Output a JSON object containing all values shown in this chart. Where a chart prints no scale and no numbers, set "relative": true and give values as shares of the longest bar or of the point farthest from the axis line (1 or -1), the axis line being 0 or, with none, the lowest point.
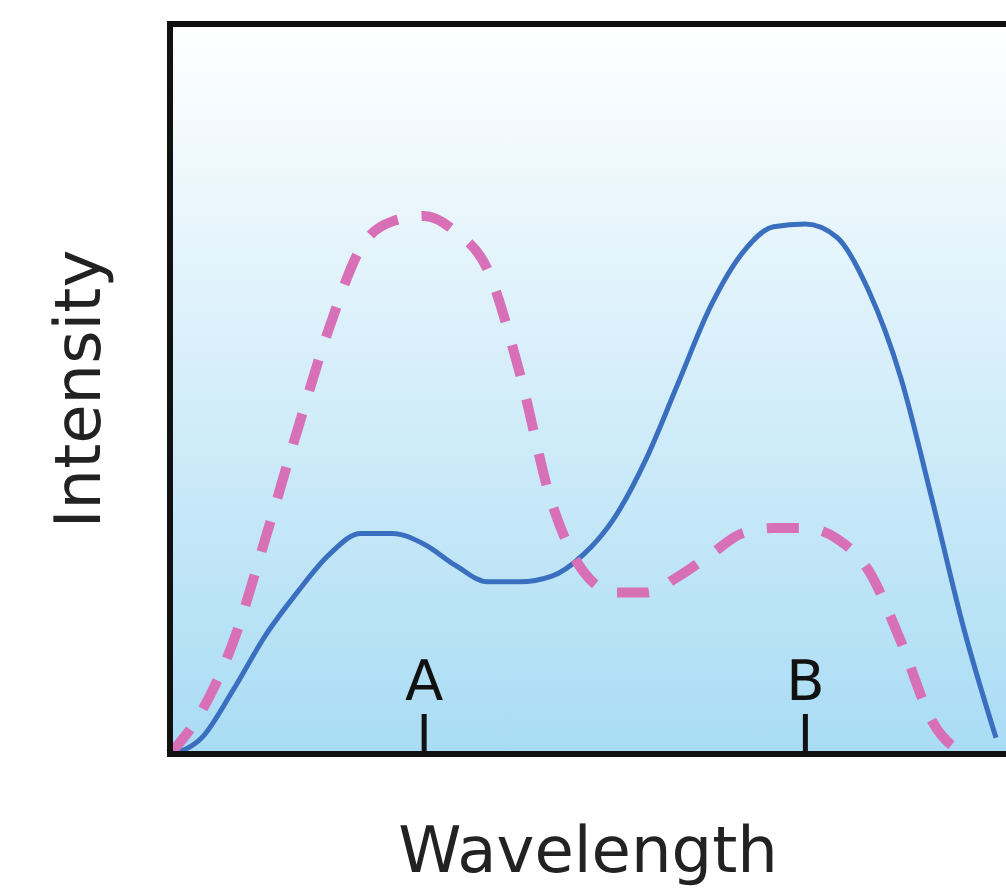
{
  "chart_data": {
    "type": "line",
    "relative": true,
    "xlabel": "Wavelength",
    "ylabel": "Intensity",
    "categories": [
      null,
      null,
      null,
      null,
      null,
      null,
      null,
      null,
      "A",
      null,
      null,
      null,
      null,
      null,
      null,
      null,
      null,
      null,
      null,
      null,
      "B",
      null,
      null,
      null,
      null,
      null,
      null
    ],
    "series": [
      {
        "color": "#3a6fc0",
        "line_style": "solid",
        "values": [
          0,
          0.03,
          0.12,
          0.22,
          0.3,
          0.37,
          0.41,
          0.41,
          0.39,
          0.35,
          0.32,
          0.32,
          0.33,
          0.37,
          0.44,
          0.55,
          0.69,
          0.83,
          0.93,
          0.98,
          0.985,
          0.96,
          0.86,
          0.7,
          0.47,
          0.23,
          0.03
        ]
      },
      {
        "color": "#d870b8",
        "line_style": "dashed",
        "values": [
          0,
          0.08,
          0.21,
          0.4,
          0.6,
          0.79,
          0.94,
          0.99,
          1,
          0.97,
          0.9,
          0.71,
          0.47,
          0.34,
          0.3,
          0.3,
          0.33,
          0.37,
          0.41,
          0.42,
          0.42,
          0.4,
          0.34,
          0.21,
          0.06,
          0,
          null
        ]
      }
    ]
  }
}
